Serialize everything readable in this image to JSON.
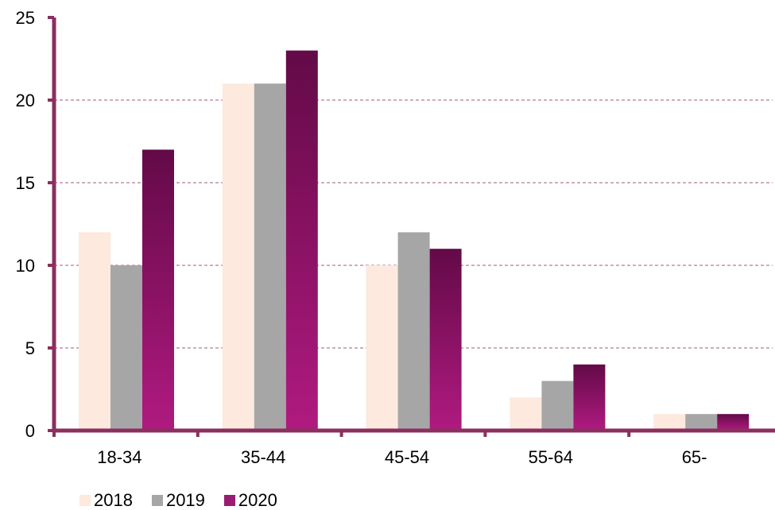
{
  "chart_data": {
    "type": "bar",
    "title": "",
    "xlabel": "",
    "ylabel": "",
    "categories": [
      "18-34",
      "35-44",
      "45-54",
      "55-64",
      "65-"
    ],
    "series": [
      {
        "name": "2018",
        "values": [
          12,
          21,
          10,
          2,
          1
        ],
        "color": "#fde9dd"
      },
      {
        "name": "2019",
        "values": [
          10,
          21,
          12,
          3,
          1
        ],
        "color": "#a6a6a6"
      },
      {
        "name": "2020",
        "values": [
          17,
          23,
          11,
          4,
          1
        ],
        "color": "#9b1a72"
      }
    ],
    "ylim": [
      0,
      25
    ],
    "yticks": [
      "0",
      "5",
      "10",
      "15",
      "20",
      "25"
    ],
    "grid": true,
    "legend": "bottom-left",
    "axis_color": "#8b2f5e"
  }
}
